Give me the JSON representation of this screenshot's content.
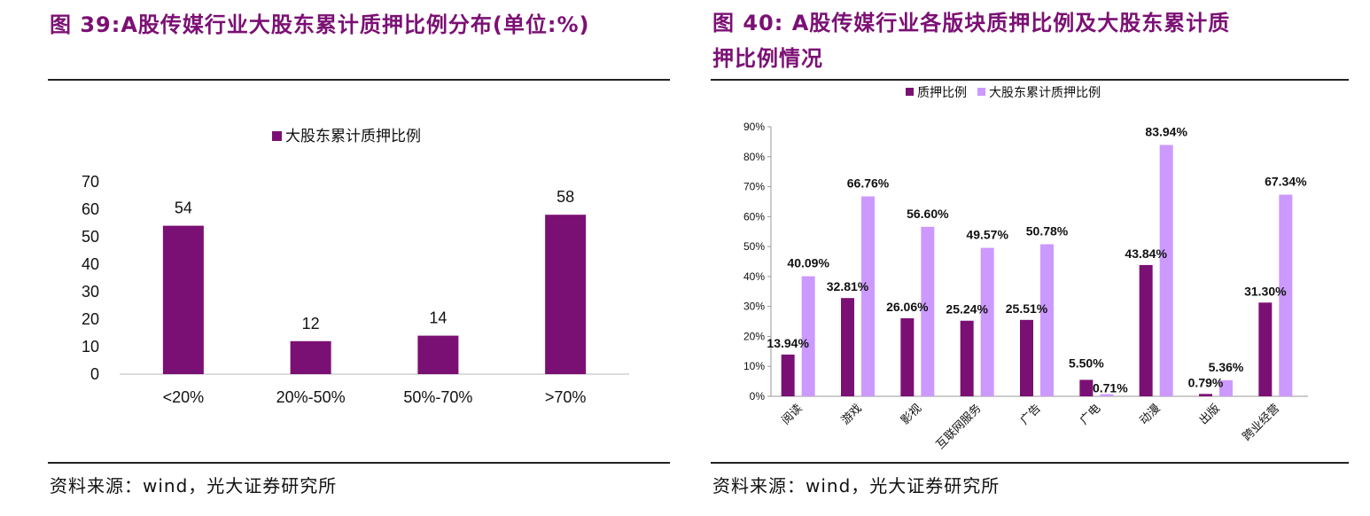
{
  "left": {
    "title": "图 39:A股传媒行业大股东累计质押比例分布(单位:%)",
    "source": "资料来源：wind，光大证券研究所",
    "chart_data": {
      "type": "bar",
      "categories": [
        "<20%",
        "20%-50%",
        "50%-70%",
        ">70%"
      ],
      "series": [
        {
          "name": "大股东累计质押比例",
          "values": [
            54,
            12,
            14,
            58
          ],
          "color": "#7b1074"
        }
      ],
      "data_labels": [
        "54",
        "12",
        "14",
        "58"
      ],
      "ylim": [
        0,
        70
      ],
      "yticks": [
        "0",
        "10",
        "20",
        "30",
        "40",
        "50",
        "60",
        "70"
      ],
      "legend": "top",
      "grid": false
    }
  },
  "right": {
    "title_line1": "图 40:  A股传媒行业各版块质押比例及大股东累计质",
    "title_line2": "押比例情况",
    "source": "资料来源：wind，光大证券研究所",
    "chart_data": {
      "type": "bar",
      "categories": [
        "阅读",
        "游戏",
        "影视",
        "互联网服务",
        "广告",
        "广电",
        "动漫",
        "出版",
        "跨业经营"
      ],
      "series": [
        {
          "name": "质押比例",
          "values": [
            13.94,
            32.81,
            26.06,
            25.24,
            25.51,
            5.5,
            43.84,
            0.79,
            31.3
          ],
          "color": "#7b1074",
          "labels": [
            "13.94%",
            "32.81%",
            "26.06%",
            "25.24%",
            "25.51%",
            "5.50%",
            "43.84%",
            "0.79%",
            "31.30%"
          ]
        },
        {
          "name": "大股东累计质押比例",
          "values": [
            40.09,
            66.76,
            56.6,
            49.57,
            50.78,
            0.71,
            83.94,
            5.36,
            67.34
          ],
          "color": "#cc99ff",
          "labels": [
            "40.09%",
            "66.76%",
            "56.60%",
            "49.57%",
            "50.78%",
            "0.71%",
            "83.94%",
            "5.36%",
            "67.34%"
          ]
        }
      ],
      "ylim": [
        0,
        90
      ],
      "yticks": [
        "0%",
        "10%",
        "20%",
        "30%",
        "40%",
        "50%",
        "60%",
        "70%",
        "80%",
        "90%"
      ],
      "legend": "top",
      "grid": false
    }
  }
}
